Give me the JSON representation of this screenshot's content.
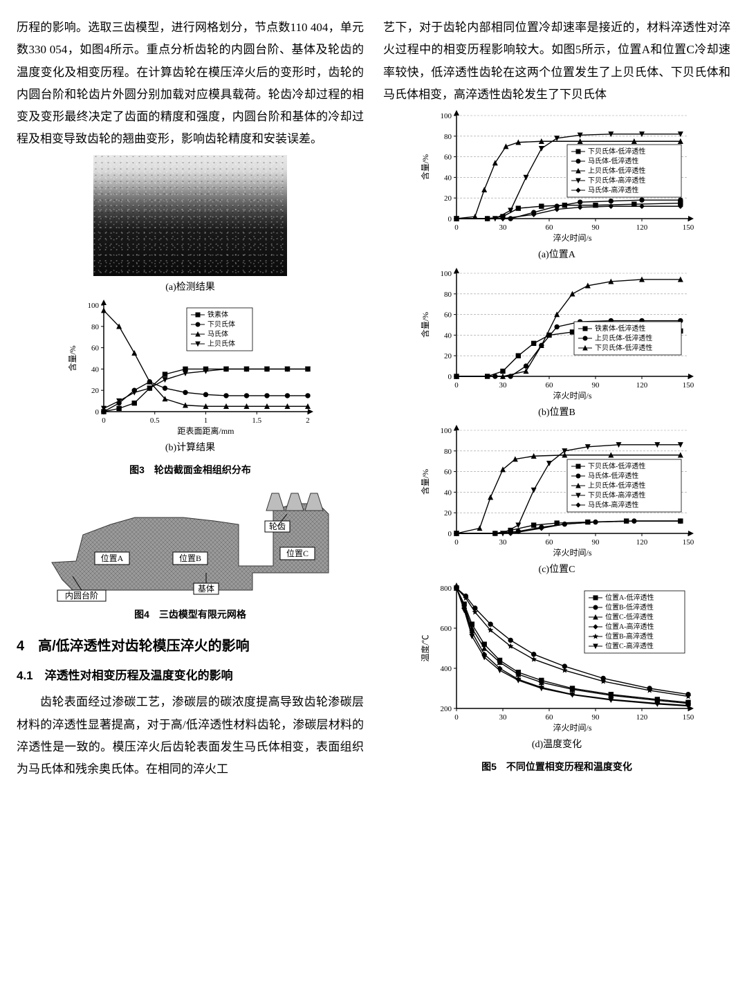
{
  "leftCol": {
    "para1": "历程的影响。选取三齿模型，进行网格划分，节点数110 404，单元数330 054，如图4所示。重点分析齿轮的内圆台阶、基体及轮齿的温度变化及相变历程。在计算齿轮在模压淬火后的变形时，齿轮的内圆台阶和轮齿片外圆分别加载对应模具载荷。轮齿冷却过程的相变及变形最终决定了齿面的精度和强度，内圆台阶和基体的冷却过程及相变导致齿轮的翘曲变形，影响齿轮精度和安装误差。",
    "fig3": {
      "cap_a": "(a)检测结果",
      "cap_b": "(b)计算结果",
      "title": "图3　轮齿截面金相组织分布",
      "chart_b": {
        "type": "line",
        "xlabel": "距表面距离/mm",
        "ylabel": "含量/%",
        "xlim": [
          0,
          2.0
        ],
        "ylim": [
          0,
          100
        ],
        "xtick_step": 0.5,
        "ytick_step": 20,
        "label_fontsize": 12,
        "background_color": "#ffffff",
        "axis_color": "#000000",
        "marker_size": 4,
        "series": [
          {
            "name": "铁素体",
            "marker": "square",
            "color": "#000000",
            "x": [
              0,
              0.15,
              0.3,
              0.45,
              0.6,
              0.8,
              1.0,
              1.2,
              1.4,
              1.6,
              1.8,
              2.0
            ],
            "y": [
              0,
              3,
              8,
              22,
              35,
              40,
              40,
              40,
              40,
              40,
              40,
              40
            ]
          },
          {
            "name": "下贝氏体",
            "marker": "circle",
            "color": "#000000",
            "x": [
              0,
              0.15,
              0.3,
              0.45,
              0.6,
              0.8,
              1.0,
              1.2,
              1.4,
              1.6,
              1.8,
              2.0
            ],
            "y": [
              0,
              8,
              20,
              28,
              22,
              18,
              16,
              15,
              15,
              15,
              15,
              15
            ]
          },
          {
            "name": "马氏体",
            "marker": "triangle",
            "color": "#000000",
            "x": [
              0,
              0.15,
              0.3,
              0.45,
              0.6,
              0.8,
              1.0,
              1.2,
              1.4,
              1.6,
              1.8,
              2.0
            ],
            "y": [
              95,
              80,
              55,
              28,
              12,
              6,
              5,
              5,
              5,
              5,
              5,
              5
            ]
          },
          {
            "name": "上贝氏体",
            "marker": "invtriangle",
            "color": "#000000",
            "x": [
              0,
              0.15,
              0.3,
              0.45,
              0.6,
              0.8,
              1.0,
              1.2,
              1.4,
              1.6,
              1.8,
              2.0
            ],
            "y": [
              3,
              10,
              18,
              22,
              30,
              36,
              38,
              40,
              40,
              40,
              40,
              40
            ]
          }
        ]
      }
    },
    "fig4": {
      "title": "图4　三齿模型有限元网格",
      "labels": {
        "A": "位置A",
        "B": "位置B",
        "C": "位置C",
        "step": "内圆台阶",
        "base": "基体",
        "tooth": "轮齿"
      }
    },
    "sec4_num": "4",
    "sec4_title": "高/低淬透性对齿轮模压淬火的影响",
    "sec41": "4.1　淬透性对相变历程及温度变化的影响",
    "para2": "齿轮表面经过渗碳工艺，渗碳层的碳浓度提高导致齿轮渗碳层材料的淬透性显著提高，对于高/低淬透性材料齿轮，渗碳层材料的淬透性是一致的。模压淬火后齿轮表面发生马氏体相变，表面组织为马氏体和残余奥氏体。在相同的淬火工"
  },
  "rightCol": {
    "para1": "艺下，对于齿轮内部相同位置冷却速率是接近的，材料淬透性对淬火过程中的相变历程影响较大。如图5所示，位置A和位置C冷却速率较快，低淬透性齿轮在这两个位置发生了上贝氏体、下贝氏体和马氏体相变，高淬透性齿轮发生了下贝氏体",
    "fig5": {
      "title": "图5　不同位置相变历程和温度变化",
      "shared": {
        "xlabel": "淬火时间/s",
        "ylabel_abc": "含量/%",
        "ylabel_d": "温度/℃",
        "xlim": [
          0,
          150
        ],
        "xtick_step": 30,
        "ylim_abc": [
          0,
          100
        ],
        "ytick_abc": 20,
        "label_fontsize": 12,
        "axis_color": "#000000",
        "marker_size": 4,
        "grid_dash": "3,2",
        "grid_color": "#888888"
      },
      "cap_a": "(a)位置A",
      "cap_b": "(b)位置B",
      "cap_c": "(c)位置C",
      "cap_d": "(d)温度变化",
      "series_a": [
        {
          "name": "下贝氏体-低淬透性",
          "marker": "square",
          "color": "#000000",
          "x": [
            0,
            20,
            30,
            40,
            55,
            70,
            90,
            115,
            145
          ],
          "y": [
            0,
            0,
            2,
            10,
            12,
            13,
            13,
            14,
            15
          ]
        },
        {
          "name": "马氏体-低淬透性",
          "marker": "circle",
          "color": "#000000",
          "x": [
            0,
            20,
            35,
            50,
            65,
            80,
            100,
            120,
            145
          ],
          "y": [
            0,
            0,
            0,
            6,
            12,
            16,
            17,
            18,
            18
          ]
        },
        {
          "name": "上贝氏体-低淬透性",
          "marker": "triangle",
          "color": "#000000",
          "x": [
            0,
            12,
            18,
            25,
            32,
            40,
            55,
            80,
            115,
            145
          ],
          "y": [
            0,
            2,
            28,
            54,
            70,
            74,
            75,
            75,
            75,
            75
          ]
        },
        {
          "name": "下贝氏体-高淬透性",
          "marker": "invtriangle",
          "color": "#000000",
          "x": [
            0,
            25,
            35,
            45,
            55,
            65,
            80,
            100,
            120,
            145
          ],
          "y": [
            0,
            0,
            8,
            40,
            68,
            78,
            81,
            82,
            82,
            82
          ]
        },
        {
          "name": "马氏体-高淬透性",
          "marker": "diamond",
          "color": "#000000",
          "x": [
            0,
            30,
            50,
            65,
            80,
            100,
            120,
            145
          ],
          "y": [
            0,
            0,
            4,
            9,
            11,
            12,
            12,
            12
          ]
        }
      ],
      "series_b": [
        {
          "name": "铁素体-低淬透性",
          "marker": "square",
          "color": "#000000",
          "x": [
            0,
            20,
            30,
            40,
            50,
            60,
            75,
            95,
            120,
            145
          ],
          "y": [
            0,
            0,
            5,
            20,
            32,
            40,
            43,
            44,
            44,
            44
          ]
        },
        {
          "name": "上贝氏体-低淬透性",
          "marker": "circle",
          "color": "#000000",
          "x": [
            0,
            25,
            35,
            45,
            55,
            65,
            80,
            100,
            120,
            145
          ],
          "y": [
            0,
            0,
            0,
            10,
            30,
            48,
            53,
            54,
            54,
            54
          ]
        },
        {
          "name": "下贝氏体-低淬透性",
          "marker": "triangle",
          "color": "#000000",
          "x": [
            0,
            30,
            45,
            55,
            65,
            75,
            85,
            100,
            120,
            145
          ],
          "y": [
            0,
            0,
            5,
            30,
            60,
            80,
            88,
            92,
            94,
            94
          ]
        }
      ],
      "series_c": [
        {
          "name": "下贝氏体-低淬透性",
          "marker": "square",
          "color": "#000000",
          "x": [
            0,
            25,
            35,
            50,
            65,
            85,
            110,
            145
          ],
          "y": [
            0,
            0,
            3,
            8,
            10,
            11,
            12,
            12
          ]
        },
        {
          "name": "马氏体-低淬透性",
          "marker": "circle",
          "color": "#000000",
          "x": [
            0,
            25,
            40,
            55,
            70,
            90,
            115,
            145
          ],
          "y": [
            0,
            0,
            2,
            6,
            9,
            11,
            12,
            12
          ]
        },
        {
          "name": "上贝氏体-低淬透性",
          "marker": "triangle",
          "color": "#000000",
          "x": [
            0,
            15,
            22,
            30,
            38,
            50,
            70,
            100,
            145
          ],
          "y": [
            0,
            5,
            35,
            62,
            72,
            75,
            76,
            76,
            76
          ]
        },
        {
          "name": "下贝氏体-高淬透性",
          "marker": "invtriangle",
          "color": "#000000",
          "x": [
            0,
            30,
            40,
            50,
            60,
            70,
            85,
            105,
            130,
            145
          ],
          "y": [
            0,
            0,
            8,
            42,
            68,
            80,
            84,
            86,
            86,
            86
          ]
        },
        {
          "name": "马氏体-高淬透性",
          "marker": "diamond",
          "color": "#000000",
          "x": [
            0,
            35,
            55,
            70,
            90,
            115,
            145
          ],
          "y": [
            0,
            0,
            5,
            9,
            11,
            12,
            12
          ]
        }
      ],
      "chart_d": {
        "ylim": [
          200,
          800
        ],
        "ytick_step": 200,
        "series": [
          {
            "name": "位置A-低淬透性",
            "marker": "square",
            "color": "#000000",
            "x": [
              0,
              5,
              10,
              18,
              28,
              40,
              55,
              75,
              100,
              130,
              150
            ],
            "y": [
              800,
              720,
              620,
              520,
              440,
              380,
              340,
              300,
              270,
              245,
              230
            ]
          },
          {
            "name": "位置B-低淬透性",
            "marker": "circle",
            "color": "#000000",
            "x": [
              0,
              6,
              12,
              22,
              35,
              50,
              70,
              95,
              125,
              150
            ],
            "y": [
              800,
              760,
              700,
              620,
              540,
              470,
              410,
              350,
              300,
              270
            ]
          },
          {
            "name": "位置C-低淬透性",
            "marker": "triangle",
            "color": "#000000",
            "x": [
              0,
              5,
              10,
              18,
              28,
              40,
              55,
              75,
              100,
              130,
              150
            ],
            "y": [
              800,
              710,
              600,
              500,
              430,
              370,
              330,
              295,
              265,
              240,
              225
            ]
          },
          {
            "name": "位置A-高淬透性",
            "marker": "diamond",
            "color": "#000000",
            "x": [
              0,
              5,
              10,
              18,
              28,
              40,
              55,
              75,
              100,
              130,
              150
            ],
            "y": [
              800,
              700,
              580,
              470,
              400,
              345,
              305,
              270,
              245,
              225,
              215
            ]
          },
          {
            "name": "位置B-高淬透性",
            "marker": "star",
            "color": "#000000",
            "x": [
              0,
              6,
              12,
              22,
              35,
              50,
              70,
              95,
              125,
              150
            ],
            "y": [
              800,
              750,
              680,
              590,
              510,
              445,
              390,
              335,
              290,
              260
            ]
          },
          {
            "name": "位置C-高淬透性",
            "marker": "invtriangle",
            "color": "#000000",
            "x": [
              0,
              5,
              10,
              18,
              28,
              40,
              55,
              75,
              100,
              130,
              150
            ],
            "y": [
              800,
              690,
              560,
              455,
              390,
              340,
              300,
              268,
              242,
              222,
              212
            ]
          }
        ]
      }
    }
  }
}
